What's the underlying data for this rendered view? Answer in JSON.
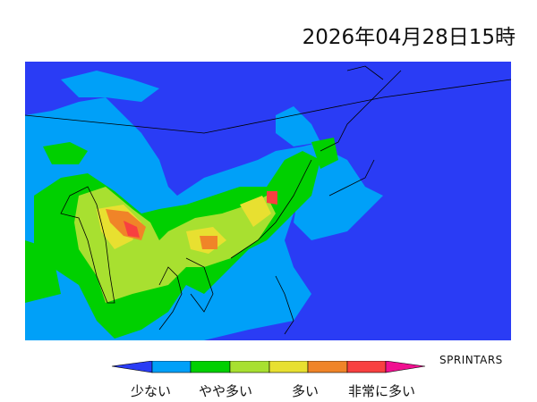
{
  "title": "2026年04月28日15時",
  "brand": "SPRINTARS",
  "legend": {
    "labels": [
      "少ない",
      "やや多い",
      "多い",
      "非常に多い"
    ],
    "colors": [
      "#2a3cf5",
      "#00a0f8",
      "#00d000",
      "#a8e030",
      "#e8e030",
      "#f08428",
      "#f84040",
      "#f01090"
    ]
  },
  "map": {
    "background_color": "#2a3cf5"
  }
}
